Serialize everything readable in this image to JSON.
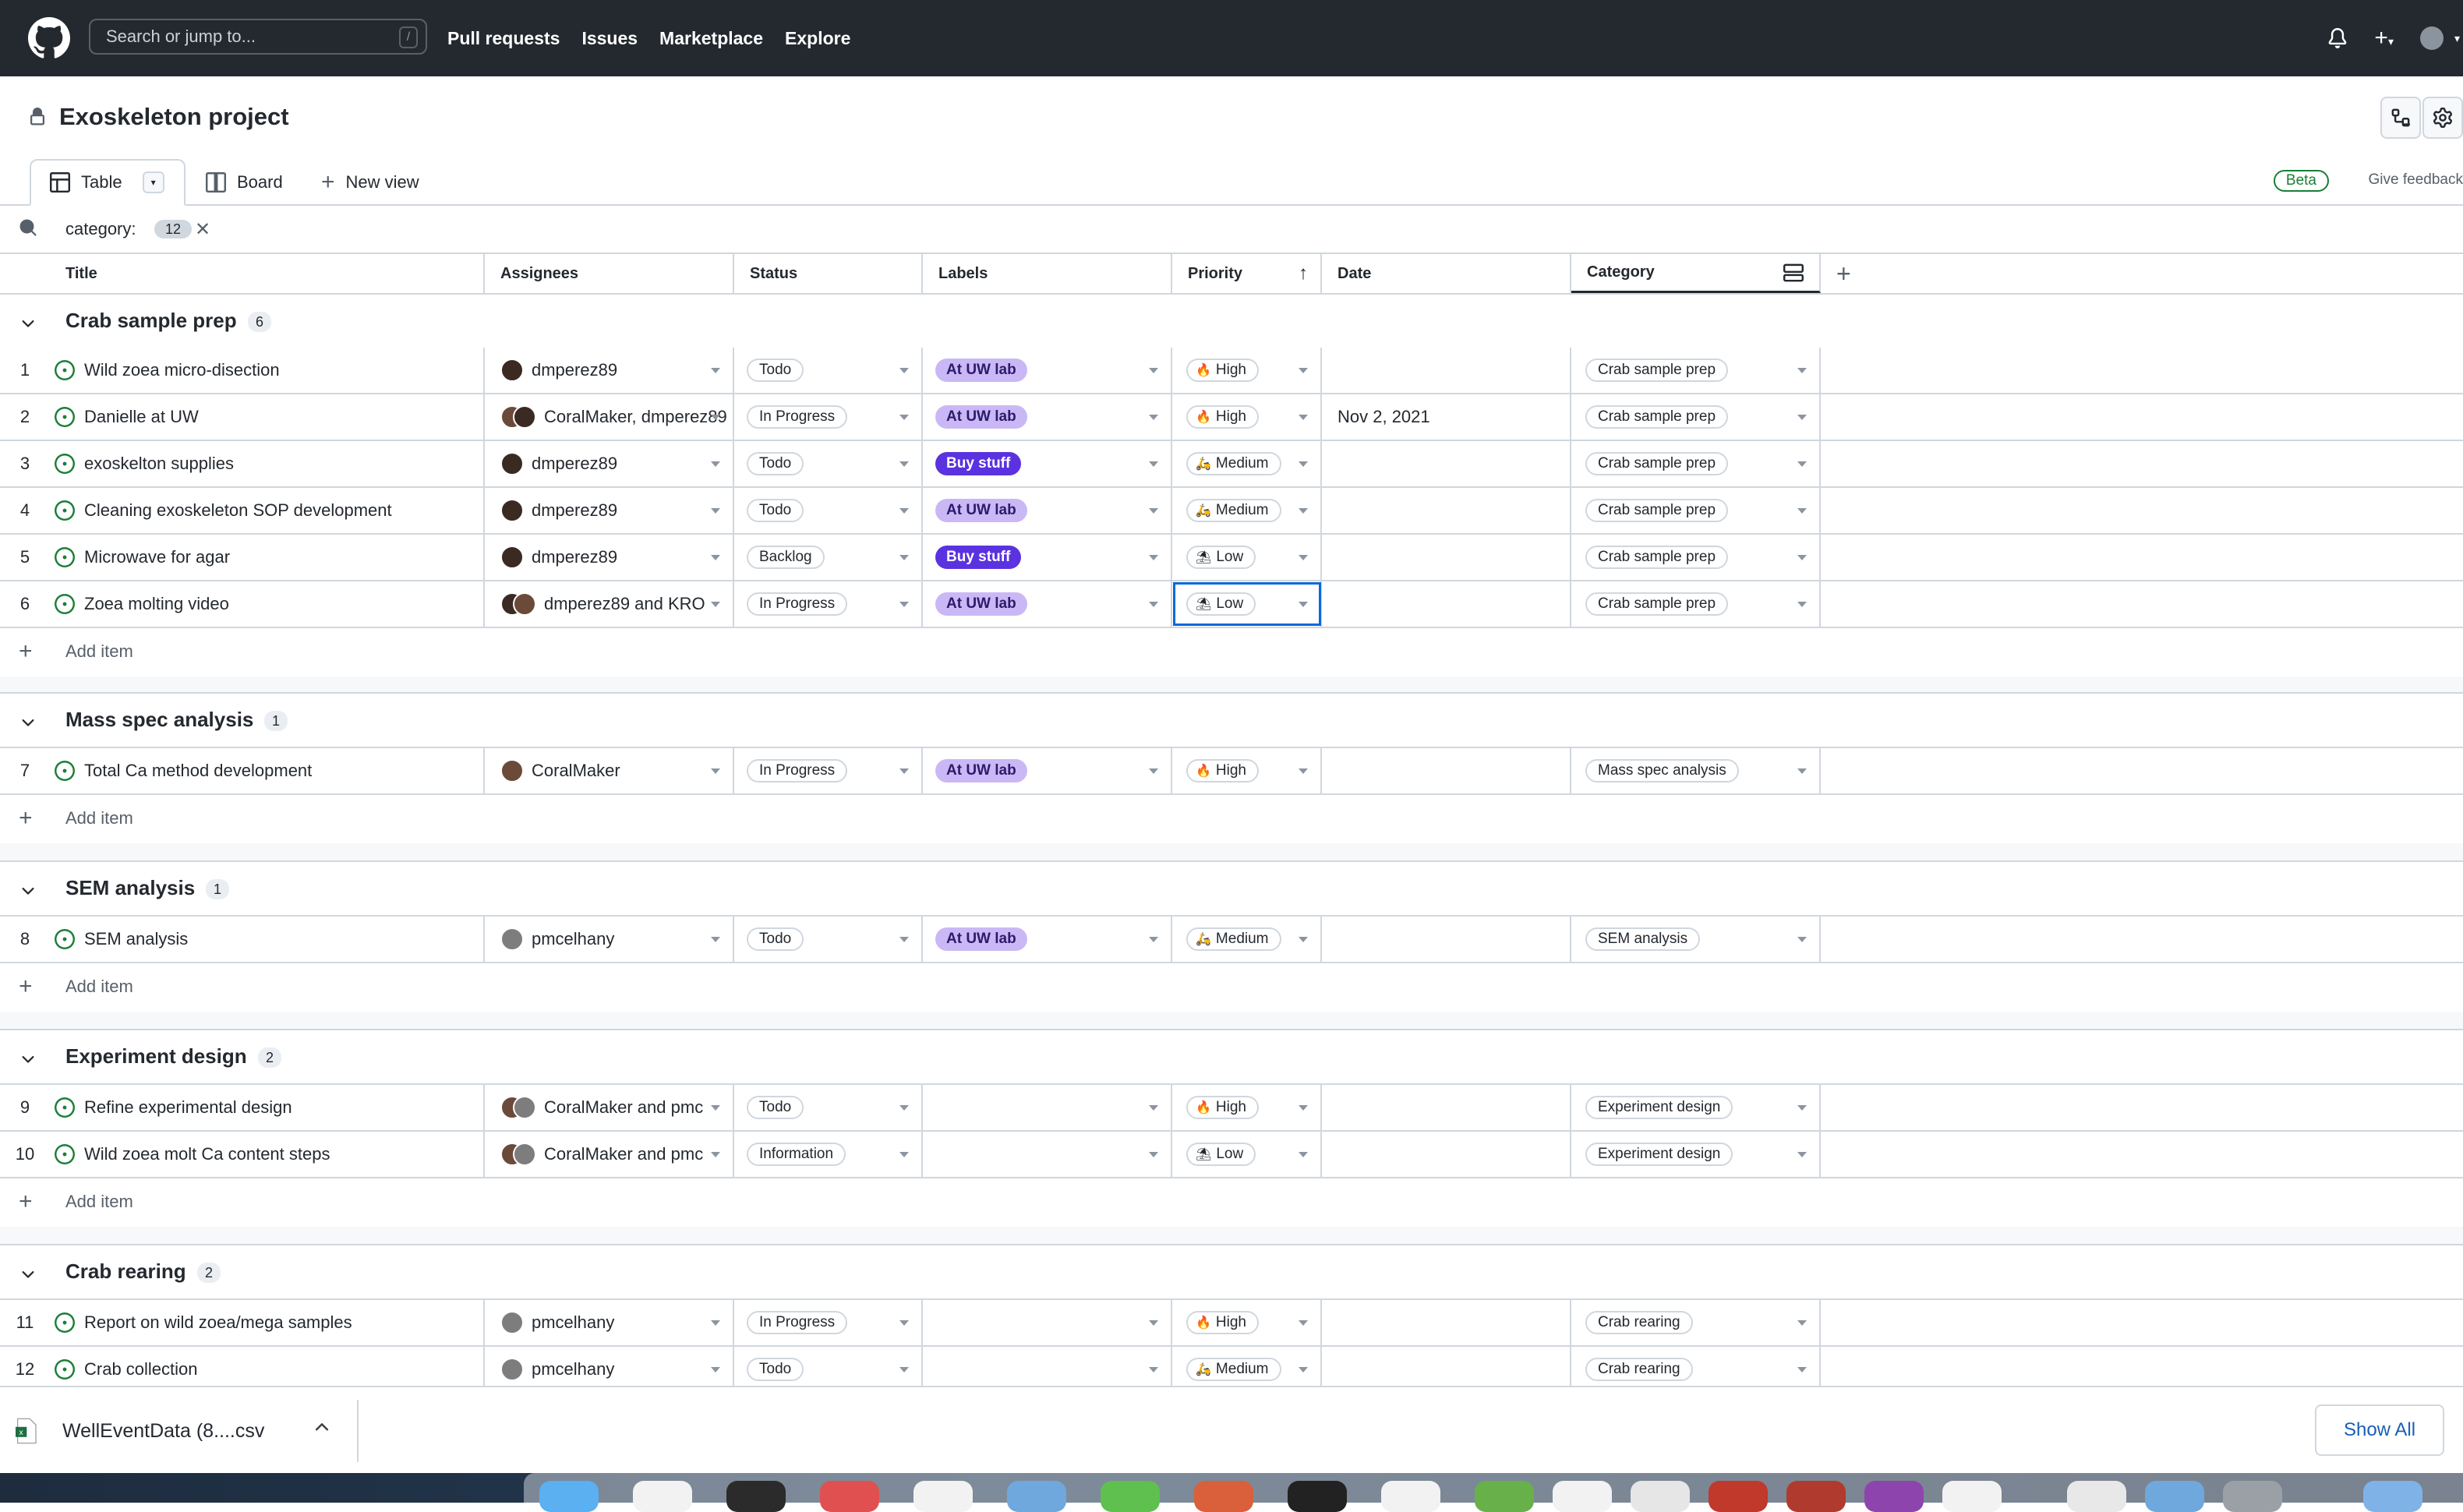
{
  "header": {
    "search_placeholder": "Search or jump to...",
    "search_shortcut": "/",
    "nav": [
      "Pull requests",
      "Issues",
      "Marketplace",
      "Explore"
    ]
  },
  "project": {
    "title": "Exoskeleton project"
  },
  "views": {
    "tabs": [
      "Table",
      "Board"
    ],
    "new_view": "New view",
    "beta": "Beta",
    "feedback": "Give feedback"
  },
  "filter": {
    "text": "category:",
    "count": "12"
  },
  "columns": [
    "Title",
    "Assignees",
    "Status",
    "Labels",
    "Priority",
    "Date",
    "Category"
  ],
  "add_item_label": "Add item",
  "groups": [
    {
      "name": "Crab sample prep",
      "count": "6",
      "rows": [
        {
          "num": "1",
          "title": "Wild zoea micro-disection",
          "assignees": "dmperez89",
          "status": "Todo",
          "label": "At UW lab",
          "priority": "High",
          "date": "",
          "category": "Crab sample prep"
        },
        {
          "num": "2",
          "title": "Danielle at UW",
          "assignees": "CoralMaker, dmperez89",
          "status": "In Progress",
          "label": "At UW lab",
          "priority": "High",
          "date": "Nov 2, 2021",
          "category": "Crab sample prep"
        },
        {
          "num": "3",
          "title": "exoskelton supplies",
          "assignees": "dmperez89",
          "status": "Todo",
          "label": "Buy stuff",
          "priority": "Medium",
          "date": "",
          "category": "Crab sample prep"
        },
        {
          "num": "4",
          "title": "Cleaning exoskeleton SOP development",
          "assignees": "dmperez89",
          "status": "Todo",
          "label": "At UW lab",
          "priority": "Medium",
          "date": "",
          "category": "Crab sample prep"
        },
        {
          "num": "5",
          "title": "Microwave for agar",
          "assignees": "dmperez89",
          "status": "Backlog",
          "label": "Buy stuff",
          "priority": "Low",
          "date": "",
          "category": "Crab sample prep"
        },
        {
          "num": "6",
          "title": "Zoea molting video",
          "assignees": "dmperez89 and KRO",
          "status": "In Progress",
          "label": "At UW lab",
          "priority": "Low",
          "date": "",
          "category": "Crab sample prep"
        }
      ]
    },
    {
      "name": "Mass spec analysis",
      "count": "1",
      "rows": [
        {
          "num": "7",
          "title": "Total Ca method development",
          "assignees": "CoralMaker",
          "status": "In Progress",
          "label": "At UW lab",
          "priority": "High",
          "date": "",
          "category": "Mass spec analysis"
        }
      ]
    },
    {
      "name": "SEM analysis",
      "count": "1",
      "rows": [
        {
          "num": "8",
          "title": "SEM analysis",
          "assignees": "pmcelhany",
          "status": "Todo",
          "label": "At UW lab",
          "priority": "Medium",
          "date": "",
          "category": "SEM analysis"
        }
      ]
    },
    {
      "name": "Experiment design",
      "count": "2",
      "rows": [
        {
          "num": "9",
          "title": "Refine experimental design",
          "assignees": "CoralMaker and pmc",
          "status": "Todo",
          "label": "",
          "priority": "High",
          "date": "",
          "category": "Experiment design"
        },
        {
          "num": "10",
          "title": "Wild zoea molt Ca content steps",
          "assignees": "CoralMaker and pmc",
          "status": "Information",
          "label": "",
          "priority": "Low",
          "date": "",
          "category": "Experiment design"
        }
      ]
    },
    {
      "name": "Crab rearing",
      "count": "2",
      "rows": [
        {
          "num": "11",
          "title": "Report on wild zoea/mega samples",
          "assignees": "pmcelhany",
          "status": "In Progress",
          "label": "",
          "priority": "High",
          "date": "",
          "category": "Crab rearing"
        },
        {
          "num": "12",
          "title": "Crab collection",
          "assignees": "pmcelhany",
          "status": "Todo",
          "label": "",
          "priority": "Medium",
          "date": "",
          "category": "Crab rearing"
        }
      ]
    }
  ],
  "download": {
    "file": "WellEventData (8....csv",
    "show_all": "Show All"
  },
  "colors": {
    "header_bg": "#24292f",
    "label_uw": "#c9b8f5",
    "label_buy": "#5a32e0",
    "open_issue": "#1a7f37",
    "focus": "#0969da"
  }
}
